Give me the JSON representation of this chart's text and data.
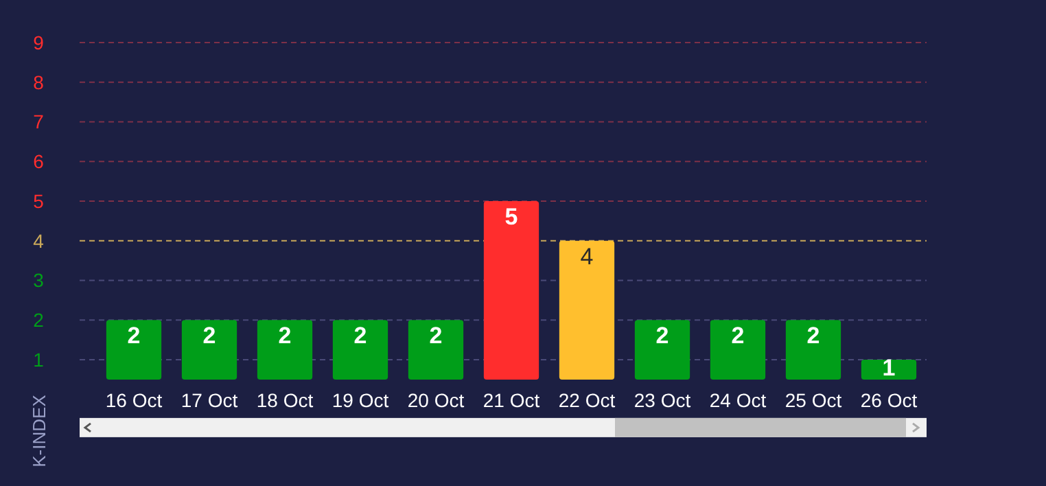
{
  "chart_data": {
    "type": "bar",
    "ylabel": "K-INDEX",
    "categories": [
      "16 Oct",
      "17 Oct",
      "18 Oct",
      "19 Oct",
      "20 Oct",
      "21 Oct",
      "22 Oct",
      "23 Oct",
      "24 Oct",
      "25 Oct",
      "26 Oct"
    ],
    "values": [
      2,
      2,
      2,
      2,
      2,
      5,
      4,
      2,
      2,
      2,
      1
    ],
    "colors": [
      "#009e19",
      "#009e19",
      "#009e19",
      "#009e19",
      "#009e19",
      "#ff2d2d",
      "#ffbf2e",
      "#009e19",
      "#009e19",
      "#009e19",
      "#009e19"
    ],
    "data_labels": true,
    "ylim": [
      0.5,
      9
    ],
    "yticks": [
      1,
      2,
      3,
      4,
      5,
      6,
      7,
      8,
      9
    ],
    "ref_lines": [
      {
        "axis": "y",
        "value": 4,
        "color": "#c9a85a",
        "line_style": "dashed"
      }
    ],
    "grid": "y"
  }
}
